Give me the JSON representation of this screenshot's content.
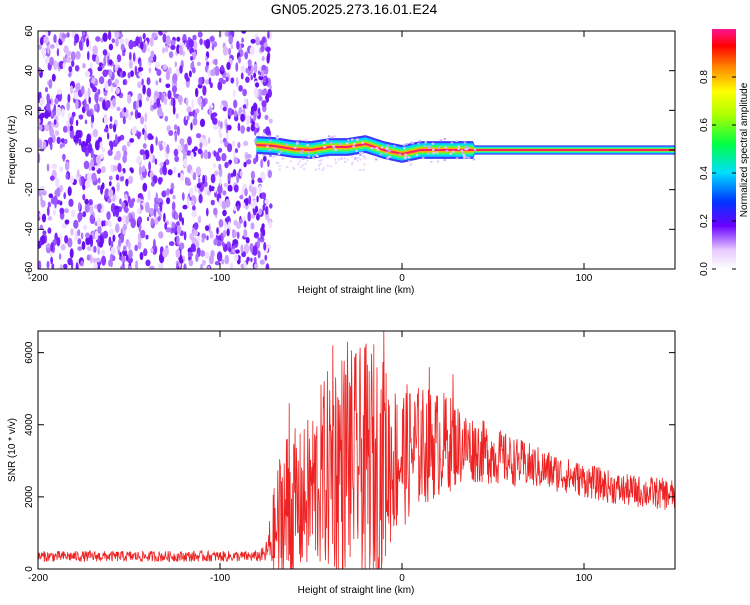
{
  "title": "GN05.2025.273.16.01.E24",
  "chart_data": [
    {
      "type": "heatmap",
      "xlabel": "Height of straight line (km)",
      "ylabel": "Frequency (Hz)",
      "xlim": [
        -200,
        150
      ],
      "ylim": [
        -60,
        60
      ],
      "x_ticks": [
        "-200",
        "-100",
        "0",
        "100"
      ],
      "y_ticks": [
        "-60",
        "-40",
        "-20",
        "0",
        "20",
        "40",
        "60"
      ],
      "colorbar": {
        "label": "Normalized spectral amplitude",
        "range": [
          0,
          1
        ],
        "ticks": [
          "0.0",
          "0.2",
          "0.4",
          "0.6",
          "0.8"
        ]
      },
      "noise_region_x": [
        -200,
        -75
      ],
      "signal_frequency_hz": 0,
      "signal_track": [
        {
          "x": -80,
          "y": 2.5
        },
        {
          "x": -70,
          "y": 2
        },
        {
          "x": -60,
          "y": 0.5
        },
        {
          "x": -50,
          "y": 0
        },
        {
          "x": -40,
          "y": 1.5
        },
        {
          "x": -30,
          "y": 1.5
        },
        {
          "x": -20,
          "y": 3
        },
        {
          "x": -10,
          "y": 0
        },
        {
          "x": 0,
          "y": -2
        },
        {
          "x": 10,
          "y": 0
        },
        {
          "x": 20,
          "y": 0
        },
        {
          "x": 40,
          "y": 0
        },
        {
          "x": 80,
          "y": 0
        },
        {
          "x": 150,
          "y": 0
        }
      ]
    },
    {
      "type": "line",
      "xlabel": "Height of straight line (km)",
      "ylabel": "SNR (10 * v/v)",
      "xlim": [
        -200,
        150
      ],
      "ylim": [
        0,
        6600
      ],
      "x_ticks": [
        "-200",
        "-100",
        "0",
        "100"
      ],
      "y_ticks": [
        "0",
        "2000",
        "4000",
        "6000"
      ],
      "series": [
        {
          "color": "#ee2222",
          "envelope": [
            {
              "x": -200,
              "base": 350,
              "amp": 150
            },
            {
              "x": -80,
              "base": 350,
              "amp": 150
            },
            {
              "x": -75,
              "base": 400,
              "amp": 250
            },
            {
              "x": -65,
              "base": 1500,
              "amp": 2600
            },
            {
              "x": -55,
              "base": 1800,
              "amp": 2000
            },
            {
              "x": -45,
              "base": 2500,
              "amp": 2600
            },
            {
              "x": -35,
              "base": 3000,
              "amp": 3200
            },
            {
              "x": -25,
              "base": 3000,
              "amp": 3100
            },
            {
              "x": -15,
              "base": 2800,
              "amp": 3600
            },
            {
              "x": -5,
              "base": 3000,
              "amp": 2200
            },
            {
              "x": 10,
              "base": 3400,
              "amp": 1700
            },
            {
              "x": 25,
              "base": 3500,
              "amp": 1400
            },
            {
              "x": 35,
              "base": 3400,
              "amp": 1000
            },
            {
              "x": 60,
              "base": 3000,
              "amp": 700
            },
            {
              "x": 90,
              "base": 2600,
              "amp": 500
            },
            {
              "x": 120,
              "base": 2200,
              "amp": 450
            },
            {
              "x": 150,
              "base": 2050,
              "amp": 450
            }
          ],
          "peaks": [
            {
              "x": -62,
              "y": 4600
            },
            {
              "x": -38,
              "y": 6200
            },
            {
              "x": -30,
              "y": 6300
            },
            {
              "x": -20,
              "y": 6100
            },
            {
              "x": -10,
              "y": 6600
            },
            {
              "x": 15,
              "y": 5600
            },
            {
              "x": 28,
              "y": 5400
            }
          ]
        }
      ]
    }
  ]
}
